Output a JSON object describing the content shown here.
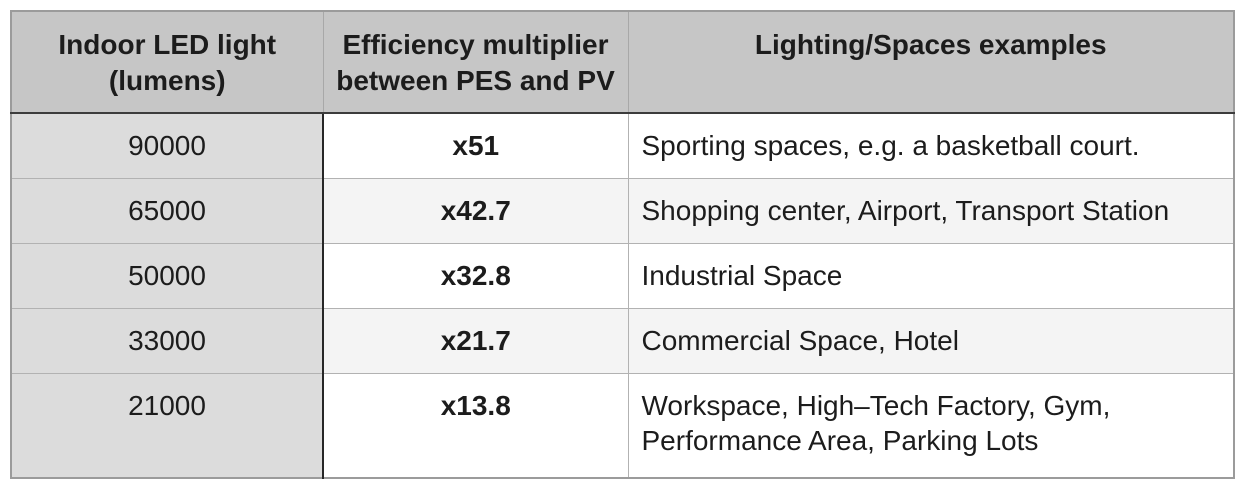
{
  "chart_data": {
    "type": "table",
    "columns": [
      {
        "title": "Indoor LED light (lumens)",
        "line1": "Indoor LED light",
        "line2": "(lumens)"
      },
      {
        "title": "Efficiency multiplier between PES and PV",
        "line1": "Efficiency multiplier",
        "line2": "between PES and PV"
      },
      {
        "title": "Lighting/Spaces examples",
        "line1": "Lighting/Spaces examples",
        "line2": ""
      }
    ],
    "rows": [
      {
        "lumens": "90000",
        "multiplier": "x51",
        "examples": "Sporting spaces, e.g. a basketball court."
      },
      {
        "lumens": "65000",
        "multiplier": "x42.7",
        "examples": "Shopping center, Airport, Transport Station"
      },
      {
        "lumens": "50000",
        "multiplier": "x32.8",
        "examples": "Industrial Space"
      },
      {
        "lumens": "33000",
        "multiplier": "x21.7",
        "examples": "Commercial Space, Hotel"
      },
      {
        "lumens": "21000",
        "multiplier": "x13.8",
        "examples": "Workspace, High–Tech Factory, Gym, Performance Area, Parking Lots"
      }
    ],
    "lumens_values": [
      90000,
      65000,
      50000,
      33000,
      21000
    ],
    "multiplier_values": [
      51,
      42.7,
      32.8,
      21.7,
      13.8
    ]
  },
  "colors": {
    "header_bg": "#c6c6c6",
    "first_column_bg": "#dcdcdc",
    "stripe_row_bg": "#f4f4f4",
    "plain_row_bg": "#ffffff",
    "dark_column_rule": "#272727",
    "header_bottom_rule": "#3c3c3c",
    "light_grid_line": "#b2b2b2",
    "outer_border": "#9b9b9b",
    "text": "#1c1c1c"
  }
}
